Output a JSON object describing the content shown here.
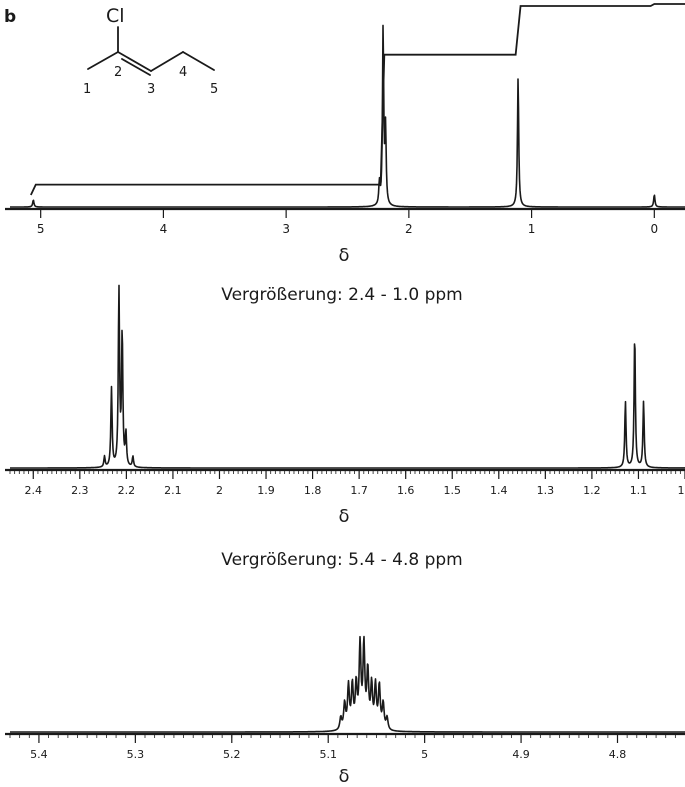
{
  "figure_label": "b",
  "structure": {
    "atoms": [
      {
        "symbol": "Cl"
      }
    ],
    "positions": [
      "1",
      "2",
      "3",
      "4",
      "5"
    ]
  },
  "chart_data": [
    {
      "type": "line",
      "name": "full",
      "title": "",
      "xlabel": "δ",
      "ylabel": "",
      "xlim": [
        5.25,
        -0.25
      ],
      "x_ticks": [
        5,
        4,
        3,
        2,
        1,
        0
      ],
      "grid": false,
      "peaks": [
        {
          "shift": 5.06,
          "height": 0.04
        },
        {
          "shift": 2.24,
          "height": 0.12
        },
        {
          "shift": 2.21,
          "height": 1.0
        },
        {
          "shift": 2.19,
          "height": 0.42
        },
        {
          "shift": 1.11,
          "height": 0.73
        },
        {
          "shift": 0.0,
          "height": 0.07
        }
      ],
      "integral_levels": [
        0.12,
        0.12,
        0.76,
        0.76,
        1.0,
        1.0
      ],
      "integral_steps_at": [
        5.04,
        2.22,
        1.12,
        0.02
      ]
    },
    {
      "type": "line",
      "name": "zoom-2.4-1.0",
      "title": "Vergrößerung: 2.4 - 1.0 ppm",
      "xlabel": "δ",
      "ylabel": "",
      "xlim": [
        2.45,
        1.0
      ],
      "x_ticks": [
        2.4,
        2.3,
        2.2,
        2.1,
        2,
        1.9,
        1.8,
        1.7,
        1.6,
        1.5,
        1.4,
        1.3,
        1.2,
        1.1,
        1
      ],
      "grid": false,
      "peaks": [
        {
          "shift": 2.247,
          "height": 0.06
        },
        {
          "shift": 2.232,
          "height": 0.44
        },
        {
          "shift": 2.216,
          "height": 1.0
        },
        {
          "shift": 2.209,
          "height": 0.75
        },
        {
          "shift": 2.201,
          "height": 0.18
        },
        {
          "shift": 2.186,
          "height": 0.06
        },
        {
          "shift": 1.128,
          "height": 0.37
        },
        {
          "shift": 1.108,
          "height": 0.75
        },
        {
          "shift": 1.089,
          "height": 0.37
        }
      ]
    },
    {
      "type": "line",
      "name": "zoom-5.4-4.8",
      "title": "Vergrößerung: 5.4 - 4.8 ppm",
      "xlabel": "δ",
      "ylabel": "",
      "xlim": [
        5.43,
        4.73
      ],
      "x_ticks": [
        5.4,
        5.3,
        5.2,
        5.1,
        5,
        4.9,
        4.8
      ],
      "grid": false,
      "peaks": [
        {
          "shift": 5.087,
          "height": 0.12
        },
        {
          "shift": 5.083,
          "height": 0.25
        },
        {
          "shift": 5.079,
          "height": 0.42
        },
        {
          "shift": 5.075,
          "height": 0.42
        },
        {
          "shift": 5.071,
          "height": 0.42
        },
        {
          "shift": 5.067,
          "height": 0.8
        },
        {
          "shift": 5.063,
          "height": 0.8
        },
        {
          "shift": 5.059,
          "height": 0.55
        },
        {
          "shift": 5.055,
          "height": 0.42
        },
        {
          "shift": 5.051,
          "height": 0.42
        },
        {
          "shift": 5.047,
          "height": 0.42
        },
        {
          "shift": 5.043,
          "height": 0.25
        },
        {
          "shift": 5.039,
          "height": 0.12
        }
      ]
    }
  ]
}
